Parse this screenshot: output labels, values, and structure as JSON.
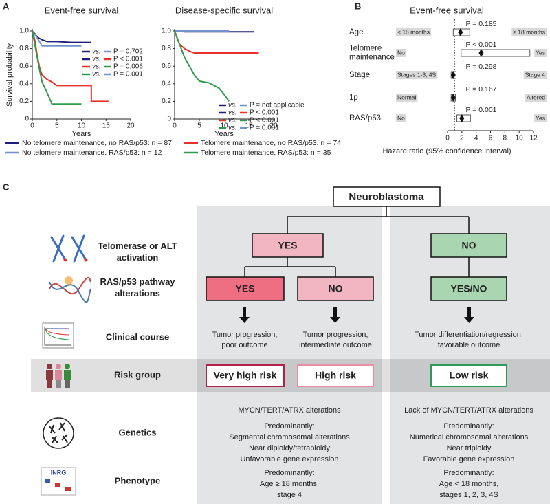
{
  "panels": {
    "a": "A",
    "b": "B",
    "c": "C"
  },
  "legend": [
    {
      "name": "No telomere maintenance, no RAS/p53: n = 87",
      "color": "#1f1f7a"
    },
    {
      "name": "No telomere maintenance, RAS/p53: n = 12",
      "color": "#6f93c8"
    },
    {
      "name": "Telomere maintenance, no RAS/p53: n = 74",
      "color": "#e8312a"
    },
    {
      "name": "Telomere maintenance, RAS/p53: n = 35",
      "color": "#2e9a4a"
    }
  ],
  "chart_data": [
    {
      "type": "line",
      "title": "Event-free survival",
      "ylabel": "Survival probability",
      "xlabel": "Years",
      "xlim": [
        0,
        20
      ],
      "xticks": [
        0,
        5,
        10,
        15,
        20
      ],
      "ylim": [
        0,
        1
      ],
      "yticks": [
        0,
        0.2,
        0.4,
        0.6,
        0.8,
        {
          "value": 1,
          "label": "1.0"
        }
      ],
      "series": [
        {
          "color": "#1f1f7a",
          "x": [
            0,
            0.5,
            1,
            2,
            3,
            5,
            8,
            12
          ],
          "values": [
            1,
            0.97,
            0.93,
            0.9,
            0.88,
            0.88,
            0.87,
            0.87
          ]
        },
        {
          "color": "#6f93c8",
          "x": [
            0,
            1,
            2,
            10
          ],
          "values": [
            1,
            0.92,
            0.83,
            0.83
          ]
        },
        {
          "color": "#e8312a",
          "x": [
            0,
            0.5,
            1,
            1.5,
            2,
            3,
            4,
            5,
            6,
            12,
            12.01,
            15.5
          ],
          "values": [
            1,
            0.9,
            0.72,
            0.58,
            0.5,
            0.45,
            0.42,
            0.38,
            0.38,
            0.38,
            0.2,
            0.2
          ]
        },
        {
          "color": "#2e9a4a",
          "x": [
            0,
            0.5,
            1,
            1.5,
            2,
            3,
            4,
            10
          ],
          "values": [
            1,
            0.85,
            0.7,
            0.55,
            0.42,
            0.3,
            0.17,
            0.17
          ]
        }
      ],
      "comparisons": [
        {
          "colors": [
            "#1f1f7a",
            "#6f93c8"
          ],
          "vs": "vs.",
          "label": "P = 0.702"
        },
        {
          "colors": [
            "#1f1f7a",
            "#e8312a"
          ],
          "vs": "vs.",
          "label": "P < 0.001"
        },
        {
          "colors": [
            "#e8312a",
            "#2e9a4a"
          ],
          "vs": "vs.",
          "label": "P = 0.006"
        },
        {
          "colors": [
            "#2e9a4a",
            "#6f93c8"
          ],
          "vs": "vs.",
          "label": "P = 0.001"
        }
      ]
    },
    {
      "type": "line",
      "title": "Disease-specific survival",
      "xlabel": "Years",
      "xlim": [
        0,
        20
      ],
      "xticks": [
        0,
        5,
        10,
        15,
        20
      ],
      "ylim": [
        0,
        1
      ],
      "yticks": [
        0,
        0.2,
        0.4,
        0.6,
        0.8,
        {
          "value": 1,
          "label": "1.0"
        }
      ],
      "series": [
        {
          "color": "#1f1f7a",
          "x": [
            0,
            2,
            16
          ],
          "values": [
            1,
            0.99,
            0.99
          ]
        },
        {
          "color": "#6f93c8",
          "x": [
            0,
            11
          ],
          "values": [
            1,
            1
          ]
        },
        {
          "color": "#e8312a",
          "x": [
            0,
            0.5,
            1,
            2,
            3,
            4,
            17
          ],
          "values": [
            1,
            0.92,
            0.85,
            0.8,
            0.77,
            0.75,
            0.75
          ]
        },
        {
          "color": "#2e9a4a",
          "x": [
            0,
            1,
            2,
            3,
            4,
            5,
            7,
            9,
            10,
            11
          ],
          "values": [
            1,
            0.85,
            0.7,
            0.6,
            0.5,
            0.43,
            0.41,
            0.35,
            0.28,
            0.2
          ]
        }
      ],
      "comparisons": [
        {
          "colors": [
            "#1f1f7a",
            "#6f93c8"
          ],
          "vs": "vs.",
          "label": "P = not applicable"
        },
        {
          "colors": [
            "#1f1f7a",
            "#e8312a"
          ],
          "vs": "vs.",
          "label": "P < 0.001"
        },
        {
          "colors": [
            "#e8312a",
            "#2e9a4a"
          ],
          "vs": "vs.",
          "label": "P < 0.001"
        },
        {
          "colors": [
            "#2e9a4a",
            "#6f93c8"
          ],
          "vs": "vs.",
          "label": "P = 0.001"
        }
      ]
    },
    {
      "type": "forest",
      "title": "Event-free survival",
      "xlabel": "Hazard ratio (95% confidence interval)",
      "xlim": [
        0,
        12
      ],
      "xticks": [
        0,
        2,
        4,
        6,
        8,
        10,
        12
      ],
      "reference": 1,
      "rows": [
        {
          "label": [
            "Age"
          ],
          "left": "< 18 months",
          "right": "≥ 18 months",
          "p": "P = 0.185",
          "hr": 1.8,
          "lo": 0.8,
          "hi": 3.1
        },
        {
          "label": [
            "Telomere",
            "maintenance"
          ],
          "left": "No",
          "right": "Yes",
          "p": "P < 0.001",
          "hr": 4.7,
          "lo": 1.9,
          "hi": 11.5
        },
        {
          "label": [
            "Stage"
          ],
          "left": "Stages 1-3, 4S",
          "right": "Stage 4",
          "p": "P = 0.298",
          "hr": 0.8,
          "lo": 0.5,
          "hi": 1.2
        },
        {
          "label": [
            "1p"
          ],
          "left": "Normal",
          "right": "Altered",
          "p": "P = 0.167",
          "hr": 0.8,
          "lo": 0.5,
          "hi": 1.1
        },
        {
          "label": [
            "RAS/p53"
          ],
          "left": "No",
          "right": "Yes",
          "p": "P = 0.001",
          "hr": 2.0,
          "lo": 1.3,
          "hi": 3.2
        }
      ]
    }
  ],
  "diagram": {
    "root": "Neuroblastoma",
    "row_labels": [
      [
        "Telomerase or ALT",
        "activation"
      ],
      [
        "RAS/p53 pathway",
        "alterations"
      ],
      [
        "Clinical course"
      ],
      [
        "Risk group"
      ],
      [
        "Genetics"
      ],
      [
        "Phenotype"
      ]
    ],
    "level1": [
      "YES",
      "NO"
    ],
    "level2": [
      "YES",
      "NO",
      "YES/NO"
    ],
    "course": [
      [
        "Tumor progression,",
        "poor outcome"
      ],
      [
        "Tumor progression,",
        "intermediate outcome"
      ],
      [
        "Tumor differentiation/regression,",
        "favorable outcome"
      ]
    ],
    "risk": [
      "Very high risk",
      "High risk",
      "Low risk"
    ],
    "genetics": [
      [
        "MYCN/TERT/ATRX alterations",
        "Predominantly:",
        "Segmental chromosomal alterations",
        "Near diploidy/tetraploidy",
        "Unfavorable gene expression"
      ],
      [
        "Lack of MYCN/TERT/ATRX alterations",
        "Predominantly:",
        "Numerical chromosomal alterations",
        "Near triploidy",
        "Favorable gene expression"
      ]
    ],
    "phenotype": [
      [
        "Predominantly:",
        "Age ≥ 18 months,",
        "stage 4"
      ],
      [
        "Predominantly:",
        "Age < 18 months,",
        "stages 1, 2, 3, 4S"
      ]
    ],
    "icon_text": "INRG"
  }
}
